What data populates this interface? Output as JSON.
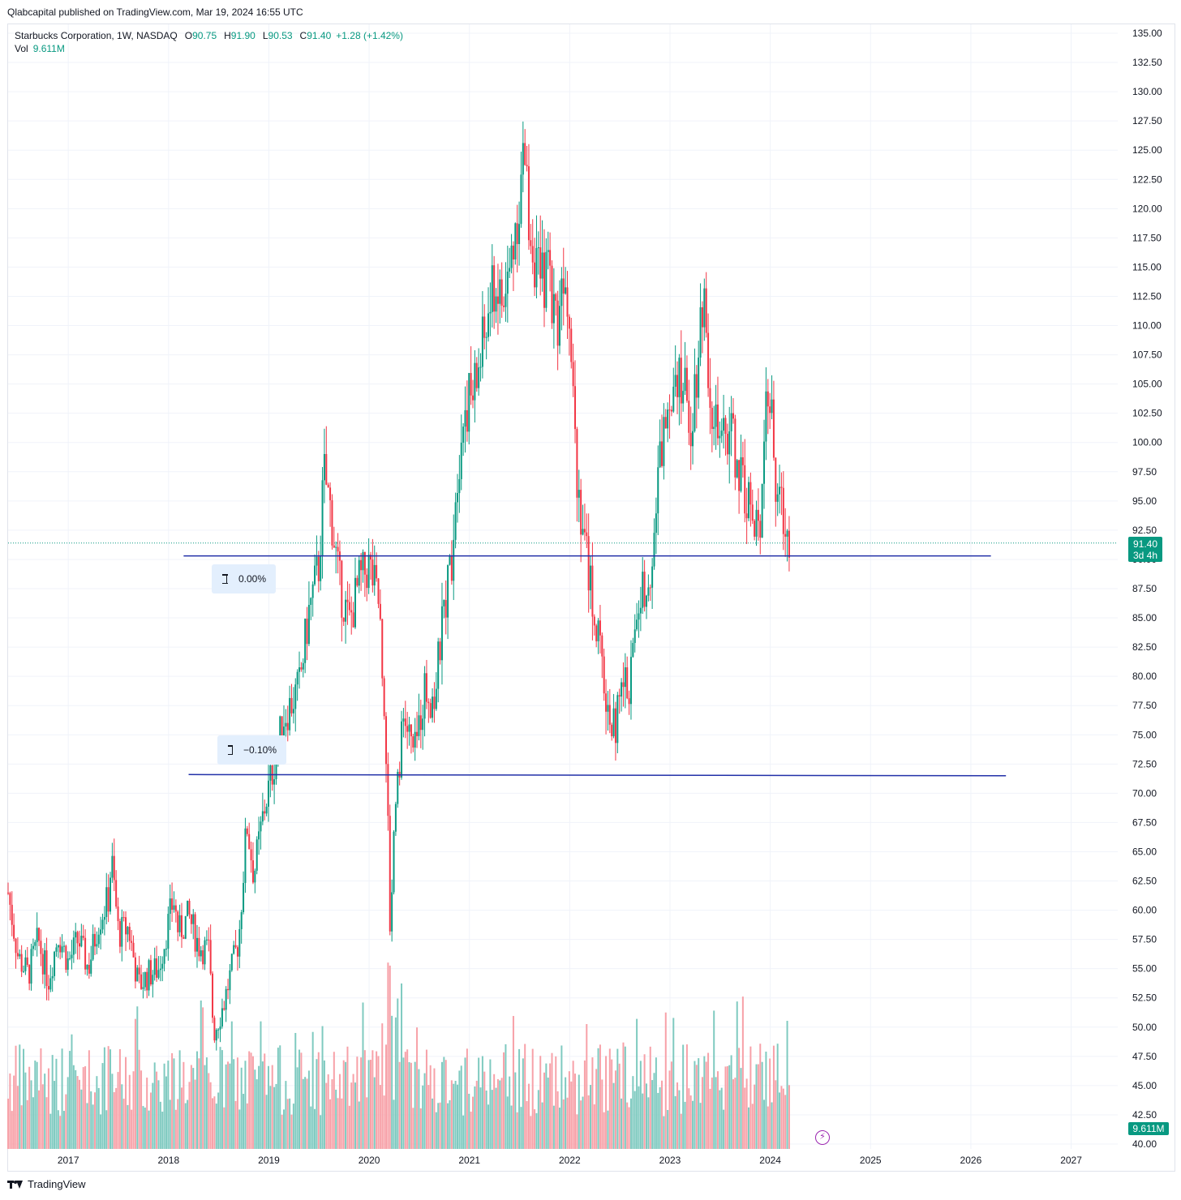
{
  "header": {
    "published_text": "Qlabcapital published on TradingView.com, Mar 19, 2024 16:55 UTC"
  },
  "legend": {
    "symbol": "Starbucks Corporation, 1W, NASDAQ",
    "open_label": "O",
    "open": "90.75",
    "high_label": "H",
    "high": "91.90",
    "low_label": "L",
    "low": "90.53",
    "close_label": "C",
    "close": "91.40",
    "change": "+1.28 (+1.42%)",
    "vol_label": "Vol",
    "vol_value": "9.611M"
  },
  "price_badge": {
    "price": "91.40",
    "countdown": "3d 4h"
  },
  "volume_badge": "9.611M",
  "fib_labels": {
    "upper": "0.00%",
    "lower": "−0.10%"
  },
  "footer": {
    "brand": "TradingView"
  },
  "colors": {
    "up": "#089981",
    "down": "#f23645",
    "up_volume": "#7fcac0",
    "down_volume": "#f7a1a8",
    "level_line": "#2230a8",
    "grid": "#f0f3fa"
  },
  "chart_data": {
    "type": "candlestick",
    "title": "Starbucks Corporation, 1W, NASDAQ",
    "ylim": [
      40,
      135
    ],
    "y_ticks": [
      "135.00",
      "132.50",
      "130.00",
      "127.50",
      "125.00",
      "122.50",
      "120.00",
      "117.50",
      "115.00",
      "112.50",
      "110.00",
      "107.50",
      "105.00",
      "102.50",
      "100.00",
      "97.50",
      "95.00",
      "92.50",
      "90.00",
      "87.50",
      "85.00",
      "82.50",
      "80.00",
      "77.50",
      "75.00",
      "72.50",
      "70.00",
      "67.50",
      "65.00",
      "62.50",
      "60.00",
      "57.50",
      "55.00",
      "52.50",
      "50.00",
      "47.50",
      "45.00",
      "42.50",
      "40.00"
    ],
    "x_ticks": [
      "2017",
      "2018",
      "2019",
      "2020",
      "2021",
      "2022",
      "2023",
      "2024",
      "2025",
      "2026",
      "2027"
    ],
    "x_range": [
      2016.4,
      2027.4
    ],
    "current_price": 91.4,
    "horizontal_levels": [
      {
        "label": "0.00%",
        "price": 90.3,
        "from": 2018.15,
        "to": 2026.2
      },
      {
        "label": "−0.10%",
        "price": 71.6,
        "from": 2018.2,
        "to": 2026.35
      }
    ],
    "price_path": [
      [
        2016.4,
        61.5
      ],
      [
        2016.5,
        56.0
      ],
      [
        2016.6,
        54.5
      ],
      [
        2016.7,
        57.5
      ],
      [
        2016.8,
        54.0
      ],
      [
        2016.9,
        58.0
      ],
      [
        2017.0,
        55.5
      ],
      [
        2017.1,
        57.5
      ],
      [
        2017.2,
        55.0
      ],
      [
        2017.3,
        59.0
      ],
      [
        2017.4,
        61.0
      ],
      [
        2017.43,
        64.5
      ],
      [
        2017.5,
        58.0
      ],
      [
        2017.6,
        58.5
      ],
      [
        2017.7,
        53.5
      ],
      [
        2017.8,
        54.5
      ],
      [
        2017.9,
        55.0
      ],
      [
        2018.0,
        59.0
      ],
      [
        2018.05,
        61.0
      ],
      [
        2018.1,
        58.0
      ],
      [
        2018.2,
        59.5
      ],
      [
        2018.3,
        57.0
      ],
      [
        2018.4,
        56.5
      ],
      [
        2018.45,
        49.5
      ],
      [
        2018.55,
        52.0
      ],
      [
        2018.7,
        57.5
      ],
      [
        2018.78,
        67.5
      ],
      [
        2018.85,
        63.0
      ],
      [
        2018.95,
        68.5
      ],
      [
        2019.05,
        72.5
      ],
      [
        2019.15,
        76.5
      ],
      [
        2019.3,
        79.0
      ],
      [
        2019.4,
        85.5
      ],
      [
        2019.5,
        89.5
      ],
      [
        2019.55,
        97.5
      ],
      [
        2019.62,
        94.0
      ],
      [
        2019.7,
        88.0
      ],
      [
        2019.8,
        84.5
      ],
      [
        2019.9,
        88.0
      ],
      [
        2020.0,
        89.5
      ],
      [
        2020.1,
        86.0
      ],
      [
        2020.17,
        74.0
      ],
      [
        2020.21,
        58.0
      ],
      [
        2020.26,
        70.0
      ],
      [
        2020.35,
        76.5
      ],
      [
        2020.45,
        73.0
      ],
      [
        2020.55,
        79.0
      ],
      [
        2020.65,
        78.0
      ],
      [
        2020.75,
        86.0
      ],
      [
        2020.82,
        90.0
      ],
      [
        2020.87,
        97.0
      ],
      [
        2020.95,
        103.0
      ],
      [
        2021.05,
        104.5
      ],
      [
        2021.15,
        109.0
      ],
      [
        2021.25,
        113.5
      ],
      [
        2021.35,
        111.5
      ],
      [
        2021.45,
        118.0
      ],
      [
        2021.55,
        124.5
      ],
      [
        2021.6,
        118.5
      ],
      [
        2021.7,
        113.5
      ],
      [
        2021.8,
        114.5
      ],
      [
        2021.87,
        110.0
      ],
      [
        2021.95,
        116.0
      ],
      [
        2022.02,
        109.0
      ],
      [
        2022.07,
        97.5
      ],
      [
        2022.15,
        91.5
      ],
      [
        2022.22,
        87.0
      ],
      [
        2022.3,
        82.0
      ],
      [
        2022.38,
        77.0
      ],
      [
        2022.45,
        75.5
      ],
      [
        2022.52,
        79.0
      ],
      [
        2022.6,
        79.5
      ],
      [
        2022.68,
        86.0
      ],
      [
        2022.75,
        88.0
      ],
      [
        2022.82,
        90.0
      ],
      [
        2022.9,
        98.5
      ],
      [
        2022.97,
        103.0
      ],
      [
        2023.05,
        107.0
      ],
      [
        2023.12,
        105.5
      ],
      [
        2023.2,
        101.5
      ],
      [
        2023.28,
        107.5
      ],
      [
        2023.33,
        113.5
      ],
      [
        2023.4,
        104.5
      ],
      [
        2023.5,
        99.0
      ],
      [
        2023.6,
        101.5
      ],
      [
        2023.7,
        97.0
      ],
      [
        2023.78,
        95.5
      ],
      [
        2023.85,
        91.5
      ],
      [
        2023.9,
        94.0
      ],
      [
        2023.95,
        104.5
      ],
      [
        2024.0,
        103.5
      ],
      [
        2024.05,
        96.5
      ],
      [
        2024.1,
        94.5
      ],
      [
        2024.15,
        93.0
      ],
      [
        2024.2,
        91.4
      ]
    ]
  }
}
